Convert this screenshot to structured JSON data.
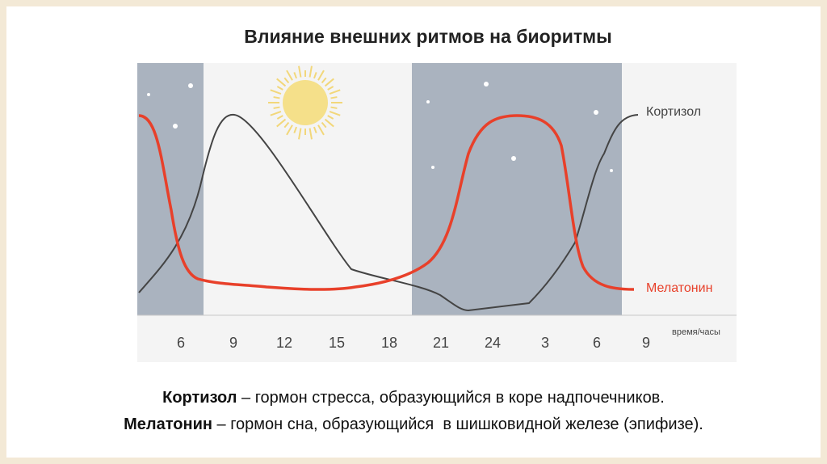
{
  "header": {
    "title": "Влияние внешних ритмов на биоритмы"
  },
  "figure": {
    "x_labels": [
      "6",
      "9",
      "12",
      "15",
      "18",
      "21",
      "24",
      "3",
      "6",
      "9"
    ],
    "x_axis_label": "время/часы",
    "curves": [
      "Кортизол",
      "Мелатонин"
    ]
  },
  "captions": [
    {
      "term": "Кортизол",
      "text": " – гормон стресса, образующийся в коре надпочечников."
    },
    {
      "term": "Мелатонин",
      "text": " – гормон сна, образующийся  в шишковидной железе (эпифизе)."
    }
  ]
}
